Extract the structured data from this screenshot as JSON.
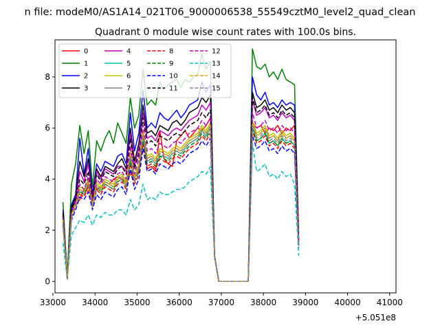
{
  "chart_data": {
    "type": "line",
    "suptitle": "n file: modeM0/AS1A14_021T06_9000006538_55549cztM0_level2_quad_clean",
    "title": "Quadrant 0 module wise count rates with 100.0s bins.",
    "xlabel": "",
    "ylabel": "",
    "x_offset_label": "+5.051e8",
    "xlim": [
      33050,
      41150
    ],
    "ylim": [
      -0.45,
      9.45
    ],
    "xticks": [
      33000,
      34000,
      35000,
      36000,
      37000,
      38000,
      39000,
      40000,
      41000
    ],
    "yticks": [
      0,
      2,
      4,
      6,
      8
    ],
    "grid": false,
    "legend": {
      "position": "upper-left",
      "columns": 4
    },
    "x_start": 33240,
    "x_step": 100,
    "series": [
      {
        "name": "0",
        "color": "#ff0000",
        "dash": "solid",
        "values": [
          2.5,
          0.2,
          2.8,
          3.0,
          3.2,
          3.6,
          3.5,
          3.8,
          3.6,
          3.7,
          3.9,
          3.8,
          4.0,
          4.1,
          4.0,
          3.9,
          4.2,
          4.1,
          4.3,
          5.8,
          4.4,
          4.5,
          4.3,
          5.9,
          4.8,
          4.6,
          4.5,
          5.5,
          5.7,
          5.9,
          5.6,
          5.8,
          6.0,
          5.9,
          6.1,
          6.4,
          1.0,
          0,
          0,
          0,
          0,
          0,
          0,
          0,
          0,
          6.2,
          6.0,
          6.1,
          5.8,
          6.0,
          5.9,
          6.1,
          5.8,
          6.0,
          5.9,
          6.1,
          1.5
        ]
      },
      {
        "name": "1",
        "color": "#008000",
        "dash": "solid",
        "values": [
          3.1,
          0.2,
          3.8,
          4.6,
          6.1,
          5.0,
          5.9,
          3.7,
          5.5,
          5.1,
          5.6,
          5.9,
          5.4,
          6.2,
          5.8,
          5.4,
          7.2,
          6.0,
          6.5,
          8.3,
          6.9,
          7.1,
          6.9,
          7.8,
          7.5,
          7.7,
          7.8,
          7.9,
          7.6,
          7.9,
          7.8,
          8.0,
          8.1,
          8.9,
          8.3,
          8.6,
          1.0,
          0,
          0,
          0,
          0,
          0,
          0,
          0,
          0,
          9.1,
          8.4,
          8.3,
          8.5,
          8.0,
          8.2,
          7.9,
          8.3,
          7.9,
          7.8,
          7.7,
          1.9
        ]
      },
      {
        "name": "2",
        "color": "#0000ff",
        "dash": "solid",
        "values": [
          2.8,
          0.1,
          3.0,
          3.4,
          5.6,
          4.2,
          5.2,
          3.4,
          4.6,
          4.3,
          4.7,
          4.6,
          4.5,
          4.9,
          5.0,
          4.6,
          6.6,
          5.1,
          5.8,
          7.5,
          6.0,
          6.2,
          6.0,
          6.6,
          6.4,
          6.3,
          6.5,
          6.7,
          6.4,
          6.6,
          6.9,
          7.0,
          7.1,
          7.8,
          7.4,
          7.7,
          1.0,
          0,
          0,
          0,
          0,
          0,
          0,
          0,
          0,
          8.0,
          7.3,
          7.1,
          7.4,
          6.9,
          7.0,
          6.8,
          7.1,
          6.9,
          7.0,
          6.9,
          1.7
        ]
      },
      {
        "name": "3",
        "color": "#000000",
        "dash": "solid",
        "values": [
          2.7,
          0.1,
          2.9,
          3.3,
          4.7,
          4.1,
          4.8,
          3.3,
          4.4,
          4.1,
          4.5,
          4.4,
          4.3,
          4.6,
          4.8,
          4.4,
          6.0,
          4.7,
          5.4,
          6.9,
          5.8,
          5.9,
          5.7,
          6.1,
          6.0,
          5.9,
          6.2,
          6.3,
          6.1,
          6.3,
          6.6,
          6.7,
          6.8,
          7.2,
          7.0,
          7.3,
          1.0,
          0,
          0,
          0,
          0,
          0,
          0,
          0,
          0,
          7.4,
          6.8,
          6.9,
          7.1,
          6.7,
          6.8,
          6.6,
          6.9,
          6.7,
          6.8,
          6.6,
          1.6
        ]
      },
      {
        "name": "4",
        "color": "#bf00bf",
        "dash": "solid",
        "values": [
          2.6,
          0.1,
          2.8,
          3.2,
          4.3,
          3.9,
          4.6,
          3.2,
          4.3,
          4.0,
          4.4,
          4.3,
          4.2,
          4.5,
          4.5,
          4.3,
          5.8,
          4.5,
          5.2,
          6.6,
          5.6,
          5.7,
          5.5,
          5.9,
          5.8,
          5.7,
          5.9,
          6.0,
          5.9,
          6.1,
          6.3,
          6.4,
          6.5,
          6.9,
          6.7,
          7.0,
          1.0,
          0,
          0,
          0,
          0,
          0,
          0,
          0,
          0,
          7.1,
          6.5,
          6.6,
          6.8,
          6.4,
          6.5,
          6.3,
          6.6,
          6.4,
          6.5,
          6.3,
          1.6
        ]
      },
      {
        "name": "5",
        "color": "#00bfbf",
        "dash": "solid",
        "values": [
          2.4,
          0.1,
          2.6,
          3.0,
          3.5,
          3.5,
          3.8,
          3.0,
          3.8,
          3.6,
          3.9,
          3.8,
          3.7,
          4.0,
          4.1,
          3.8,
          4.8,
          4.0,
          4.4,
          5.6,
          4.7,
          4.8,
          4.6,
          4.9,
          4.9,
          4.8,
          5.0,
          5.1,
          5.0,
          5.2,
          5.4,
          5.5,
          5.6,
          5.9,
          5.7,
          6.0,
          1.0,
          0,
          0,
          0,
          0,
          0,
          0,
          0,
          0,
          6.0,
          5.5,
          5.6,
          5.8,
          5.4,
          5.5,
          5.3,
          5.6,
          5.4,
          5.5,
          5.3,
          1.4
        ]
      },
      {
        "name": "6",
        "color": "#bfbf00",
        "dash": "solid",
        "values": [
          2.5,
          0.1,
          2.7,
          3.1,
          3.7,
          3.6,
          4.0,
          3.1,
          3.9,
          3.7,
          4.0,
          3.9,
          3.8,
          4.1,
          4.2,
          3.9,
          5.1,
          4.1,
          4.6,
          5.9,
          4.9,
          5.0,
          4.8,
          5.2,
          5.1,
          5.0,
          5.2,
          5.3,
          5.2,
          5.4,
          5.6,
          5.7,
          5.8,
          6.1,
          5.9,
          6.2,
          1.0,
          0,
          0,
          0,
          0,
          0,
          0,
          0,
          0,
          6.3,
          5.8,
          5.9,
          6.1,
          5.7,
          5.8,
          5.6,
          5.9,
          5.7,
          5.8,
          5.6,
          1.5
        ]
      },
      {
        "name": "7",
        "color": "#808080",
        "dash": "solid",
        "values": [
          2.4,
          0.1,
          2.6,
          3.0,
          3.6,
          3.5,
          3.9,
          3.0,
          3.8,
          3.6,
          3.9,
          3.8,
          3.7,
          4.0,
          4.1,
          3.8,
          5.0,
          4.0,
          4.5,
          5.8,
          4.8,
          4.9,
          4.7,
          5.1,
          5.0,
          4.9,
          5.1,
          5.2,
          5.1,
          5.3,
          5.5,
          5.6,
          5.7,
          6.0,
          5.8,
          6.1,
          1.0,
          0,
          0,
          0,
          0,
          0,
          0,
          0,
          0,
          6.2,
          5.7,
          5.8,
          6.0,
          5.6,
          5.7,
          5.5,
          5.8,
          5.6,
          5.7,
          5.5,
          1.5
        ]
      },
      {
        "name": "8",
        "color": "#ff0000",
        "dash": "dashed",
        "values": [
          2.3,
          0.1,
          2.5,
          2.9,
          3.4,
          3.3,
          3.7,
          2.9,
          3.6,
          3.4,
          3.7,
          3.6,
          3.5,
          3.8,
          3.9,
          3.6,
          4.6,
          3.8,
          4.2,
          5.4,
          4.5,
          4.6,
          4.4,
          4.8,
          4.7,
          4.6,
          4.8,
          4.9,
          4.8,
          5.0,
          5.2,
          5.3,
          5.4,
          5.7,
          5.5,
          5.8,
          1.0,
          0,
          0,
          0,
          0,
          0,
          0,
          0,
          0,
          5.9,
          5.4,
          5.5,
          5.7,
          5.3,
          5.4,
          5.2,
          5.5,
          5.3,
          5.4,
          5.2,
          1.4
        ]
      },
      {
        "name": "9",
        "color": "#008000",
        "dash": "dashed",
        "values": [
          2.4,
          0.1,
          2.6,
          3.0,
          3.5,
          3.4,
          3.8,
          3.0,
          3.7,
          3.5,
          3.8,
          3.7,
          3.6,
          3.9,
          4.0,
          3.7,
          4.7,
          3.9,
          4.3,
          5.5,
          4.6,
          4.7,
          4.5,
          4.9,
          4.8,
          4.7,
          4.9,
          5.0,
          4.9,
          5.1,
          5.3,
          5.4,
          5.5,
          5.8,
          5.6,
          5.9,
          1.0,
          0,
          0,
          0,
          0,
          0,
          0,
          0,
          0,
          6.0,
          5.5,
          5.6,
          5.8,
          5.4,
          5.5,
          5.3,
          5.6,
          5.4,
          5.5,
          5.3,
          1.4
        ]
      },
      {
        "name": "10",
        "color": "#0000ff",
        "dash": "dashed",
        "values": [
          2.2,
          0.1,
          2.4,
          2.8,
          3.3,
          3.2,
          3.5,
          2.8,
          3.4,
          3.2,
          3.5,
          3.4,
          3.3,
          3.6,
          3.7,
          3.4,
          4.4,
          3.6,
          4.0,
          5.2,
          4.3,
          4.4,
          4.2,
          4.6,
          4.5,
          4.4,
          4.6,
          4.7,
          4.6,
          4.8,
          5.0,
          5.1,
          5.2,
          5.5,
          5.3,
          5.6,
          1.0,
          0,
          0,
          0,
          0,
          0,
          0,
          0,
          0,
          5.7,
          5.2,
          5.3,
          5.5,
          5.1,
          5.2,
          5.0,
          5.3,
          5.1,
          5.2,
          5.0,
          1.3
        ]
      },
      {
        "name": "11",
        "color": "#000000",
        "dash": "dashed",
        "values": [
          2.6,
          0.1,
          2.8,
          3.2,
          4.0,
          3.8,
          4.3,
          3.2,
          4.2,
          3.9,
          4.3,
          4.2,
          4.1,
          4.4,
          4.5,
          4.2,
          5.6,
          4.4,
          5.0,
          6.4,
          5.4,
          5.5,
          5.3,
          5.7,
          5.6,
          5.5,
          5.7,
          5.8,
          5.7,
          5.9,
          6.1,
          6.2,
          6.3,
          6.6,
          6.4,
          6.7,
          1.0,
          0,
          0,
          0,
          0,
          0,
          0,
          0,
          0,
          7.2,
          6.6,
          6.7,
          6.9,
          6.5,
          6.6,
          6.4,
          6.7,
          6.5,
          6.6,
          6.4,
          1.6
        ]
      },
      {
        "name": "12",
        "color": "#bf00bf",
        "dash": "dashed",
        "values": [
          2.5,
          0.1,
          2.7,
          3.1,
          3.8,
          3.6,
          4.1,
          3.1,
          4.0,
          3.8,
          4.1,
          4.0,
          3.9,
          4.2,
          4.3,
          4.0,
          5.3,
          4.2,
          4.8,
          6.1,
          5.1,
          5.2,
          5.0,
          5.4,
          5.3,
          5.2,
          5.4,
          5.5,
          5.4,
          5.6,
          5.8,
          5.9,
          6.0,
          6.3,
          6.1,
          6.4,
          1.0,
          0,
          0,
          0,
          0,
          0,
          0,
          0,
          0,
          6.6,
          6.0,
          6.1,
          6.3,
          5.9,
          6.0,
          5.8,
          6.1,
          5.9,
          6.0,
          5.8,
          1.5
        ]
      },
      {
        "name": "13",
        "color": "#00bfbf",
        "dash": "dashed",
        "values": [
          1.5,
          0.1,
          1.8,
          2.1,
          2.4,
          2.3,
          2.6,
          2.2,
          2.6,
          2.5,
          2.7,
          2.6,
          2.6,
          2.8,
          2.8,
          2.6,
          3.2,
          2.8,
          3.0,
          3.8,
          3.2,
          3.3,
          3.2,
          3.5,
          3.4,
          3.4,
          3.5,
          3.6,
          3.6,
          3.7,
          3.9,
          4.0,
          4.1,
          4.3,
          4.2,
          4.5,
          0.9,
          0,
          0,
          0,
          0,
          0,
          0,
          0,
          0,
          5.4,
          4.3,
          4.4,
          4.6,
          4.1,
          4.2,
          4.0,
          4.3,
          4.1,
          4.2,
          3.8,
          1.0
        ]
      },
      {
        "name": "14",
        "color": "#dfa500",
        "dash": "dashed",
        "values": [
          2.4,
          0.1,
          2.6,
          3.0,
          3.6,
          3.5,
          3.9,
          3.0,
          3.8,
          3.6,
          3.9,
          3.8,
          3.7,
          4.0,
          4.1,
          3.8,
          5.0,
          4.0,
          4.5,
          5.8,
          4.8,
          4.9,
          4.7,
          5.1,
          5.0,
          4.9,
          5.1,
          5.2,
          5.1,
          5.3,
          5.5,
          5.6,
          5.7,
          6.0,
          5.8,
          6.1,
          1.0,
          0,
          0,
          0,
          0,
          0,
          0,
          0,
          0,
          6.2,
          5.7,
          5.8,
          6.0,
          5.6,
          5.7,
          5.5,
          5.8,
          5.6,
          5.7,
          5.5,
          1.5
        ]
      },
      {
        "name": "15",
        "color": "#808080",
        "dash": "dashed",
        "values": [
          2.3,
          0.1,
          2.5,
          2.9,
          3.5,
          3.4,
          3.8,
          2.9,
          3.7,
          3.5,
          3.8,
          3.7,
          3.6,
          3.9,
          4.0,
          3.7,
          4.9,
          3.9,
          4.4,
          5.7,
          4.7,
          4.8,
          4.6,
          5.0,
          4.9,
          4.8,
          5.0,
          5.1,
          5.0,
          5.2,
          5.4,
          5.5,
          5.6,
          5.9,
          5.7,
          6.0,
          1.0,
          0,
          0,
          0,
          0,
          0,
          0,
          0,
          0,
          6.1,
          5.6,
          5.7,
          5.9,
          5.5,
          5.6,
          5.4,
          5.7,
          5.5,
          5.6,
          5.4,
          1.4
        ]
      }
    ]
  }
}
